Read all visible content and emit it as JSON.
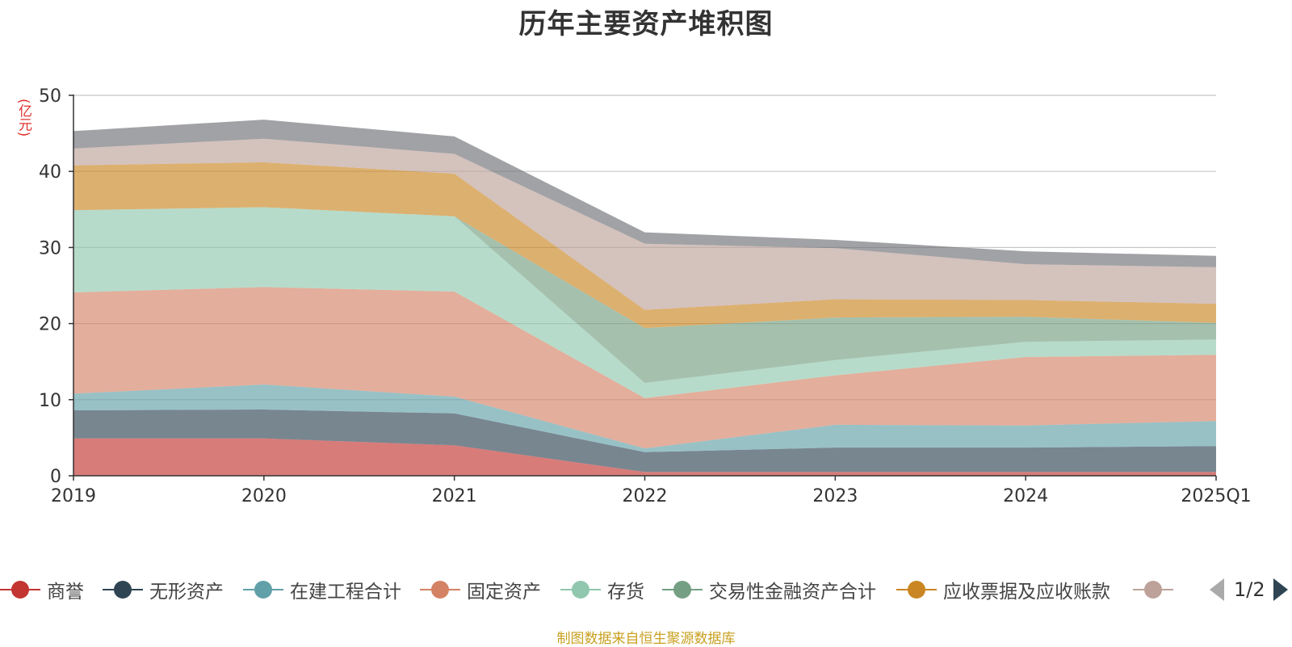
{
  "chart_data": {
    "type": "area",
    "stacked": true,
    "title": "历年主要资产堆积图",
    "unit_label": "(亿元)",
    "x": [
      "2019",
      "2020",
      "2021",
      "2022",
      "2023",
      "2024",
      "2025Q1"
    ],
    "ylim": [
      0,
      50
    ],
    "yticks": [
      0,
      10,
      20,
      30,
      40,
      50
    ],
    "grid": true,
    "legend_position": "bottom",
    "series": [
      {
        "name": "商誉",
        "color": "#c23531",
        "values": [
          4.9,
          4.9,
          4.0,
          0.5,
          0.5,
          0.5,
          0.5
        ]
      },
      {
        "name": "无形资产",
        "color": "#2f4554",
        "values": [
          3.7,
          3.8,
          4.2,
          2.6,
          3.2,
          3.2,
          3.4
        ]
      },
      {
        "name": "在建工程合计",
        "color": "#61a0a8",
        "values": [
          2.2,
          3.3,
          2.2,
          0.5,
          3.0,
          2.9,
          3.3
        ]
      },
      {
        "name": "固定资产",
        "color": "#d48265",
        "values": [
          13.3,
          12.8,
          13.8,
          6.6,
          6.5,
          9.0,
          8.7
        ]
      },
      {
        "name": "存货",
        "color": "#91c7ae",
        "values": [
          10.8,
          10.5,
          9.9,
          2.0,
          2.0,
          2.0,
          2.0
        ]
      },
      {
        "name": "交易性金融资产合计",
        "color": "#749f83",
        "values": [
          0,
          0,
          0,
          7.2,
          5.6,
          3.3,
          2.2
        ]
      },
      {
        "name": "应收票据及应收账款",
        "color": "#ca8622",
        "values": [
          5.9,
          5.9,
          5.6,
          2.4,
          2.4,
          2.2,
          2.5
        ]
      },
      {
        "name": "",
        "color": "#bda29a",
        "values": [
          2.2,
          3.1,
          2.6,
          8.7,
          6.7,
          4.7,
          4.8
        ]
      },
      {
        "name": "",
        "color": "#6e7074",
        "values": [
          2.3,
          2.5,
          2.3,
          1.5,
          1.1,
          1.7,
          1.5
        ]
      }
    ]
  },
  "legend": {
    "items": [
      {
        "label": "商誉",
        "color": "#c23531"
      },
      {
        "label": "无形资产",
        "color": "#2f4554"
      },
      {
        "label": "在建工程合计",
        "color": "#61a0a8"
      },
      {
        "label": "固定资产",
        "color": "#d48265"
      },
      {
        "label": "存货",
        "color": "#91c7ae"
      },
      {
        "label": "交易性金融资产合计",
        "color": "#749f83"
      },
      {
        "label": "应收票据及应收账款",
        "color": "#ca8622"
      },
      {
        "label": "",
        "color": "#bda29a"
      }
    ],
    "page_text": "1/2"
  },
  "footer": {
    "source_text": "制图数据来自恒生聚源数据库"
  }
}
